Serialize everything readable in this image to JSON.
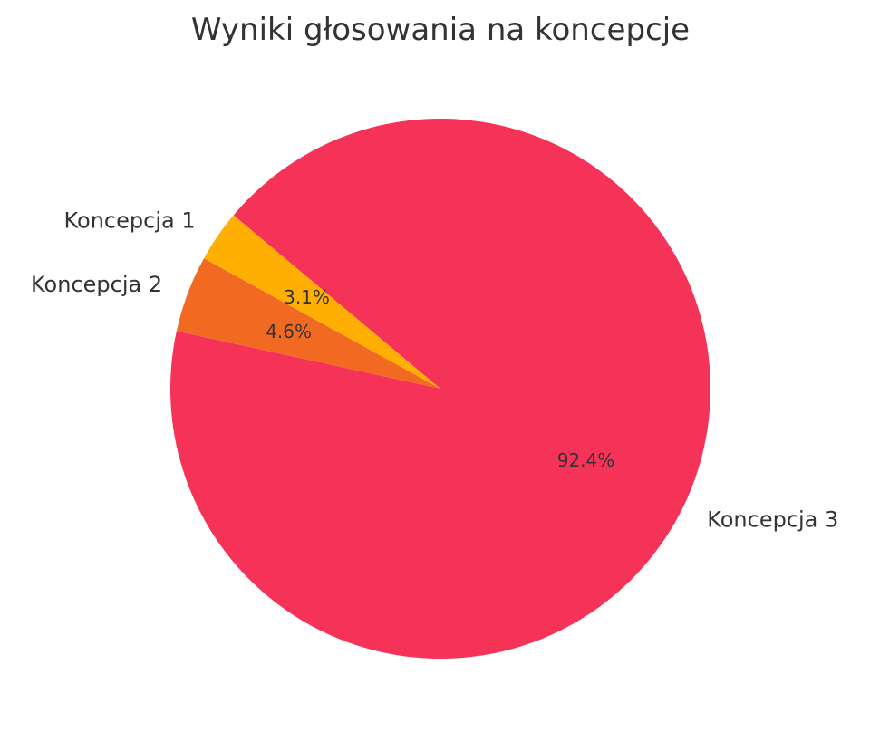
{
  "chart_data": {
    "type": "pie",
    "title": "Wyniki głosowania na koncepcje",
    "categories": [
      "Koncepcja 1",
      "Koncepcja 2",
      "Koncepcja 3"
    ],
    "values": [
      3.1,
      4.6,
      92.4
    ],
    "value_labels": [
      "3.1%",
      "4.6%",
      "92.4%"
    ],
    "colors": [
      "#FFAE02",
      "#F26A21",
      "#F53257"
    ],
    "start_angle_deg": 140,
    "direction": "counterclockwise",
    "legend": "none"
  }
}
